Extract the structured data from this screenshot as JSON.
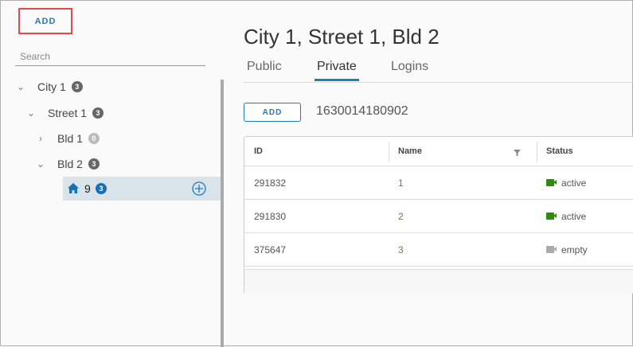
{
  "sidebar": {
    "add_label": "ADD",
    "search_placeholder": "Search",
    "tree": [
      {
        "label": "City 1",
        "count": "3"
      },
      {
        "label": "Street 1",
        "count": "3"
      },
      {
        "label": "Bld 1",
        "count": "0"
      },
      {
        "label": "Bld 2",
        "count": "3"
      },
      {
        "label": "9",
        "count": "3",
        "icon": "home-icon",
        "selected": true
      }
    ]
  },
  "main": {
    "title": "City 1, Street 1, Bld 2",
    "tabs": [
      {
        "label": "Public"
      },
      {
        "label": "Private",
        "active": true
      },
      {
        "label": "Logins"
      }
    ],
    "add_label": "ADD",
    "identifier": "1630014180902",
    "table": {
      "columns": [
        "ID",
        "Name",
        "Status"
      ],
      "rows": [
        {
          "id": "291832",
          "name": "1",
          "status": "active"
        },
        {
          "id": "291830",
          "name": "2",
          "status": "active"
        },
        {
          "id": "375647",
          "name": "3",
          "status": "empty"
        }
      ]
    }
  },
  "colors": {
    "accent": "#1f7bbf",
    "active": "#2e8b12",
    "empty": "#aaaaaa",
    "name_text": "#8b6b3d"
  }
}
